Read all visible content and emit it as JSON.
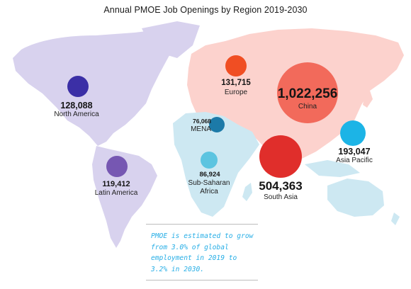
{
  "title": "Annual PMOE Job Openings by Region 2019-2030",
  "note": "PMOE is estimated to grow from 3.0% of global employment in 2019 to 3.2% in 2030.",
  "colors": {
    "north_america": "#3b2fa6",
    "latin_america": "#7657b2",
    "europe": "#f04e23",
    "china": "#f26a5b",
    "mena": "#1c7aa8",
    "sub_saharan_africa": "#5cc4e0",
    "south_asia": "#e02e2b",
    "asia_pacific": "#1cb4e6",
    "land_americas": "#d8d2ee",
    "land_eurasia": "#fcd2cd",
    "land_africa": "#cde8f2"
  },
  "regions": [
    {
      "key": "north_america",
      "name": "North America",
      "value": "128,088",
      "value_num": 128088
    },
    {
      "key": "latin_america",
      "name": "Latin America",
      "value": "119,412",
      "value_num": 119412
    },
    {
      "key": "europe",
      "name": "Europe",
      "value": "131,715",
      "value_num": 131715
    },
    {
      "key": "china",
      "name": "China",
      "value": "1,022,256",
      "value_num": 1022256
    },
    {
      "key": "mena",
      "name": "MENA",
      "value": "76,068",
      "value_num": 76068
    },
    {
      "key": "sub_saharan_africa",
      "name": "Sub-Saharan Africa",
      "value": "86,924",
      "value_num": 86924
    },
    {
      "key": "south_asia",
      "name": "South Asia",
      "value": "504,363",
      "value_num": 504363
    },
    {
      "key": "asia_pacific",
      "name": "Asia Pacific",
      "value": "193,047",
      "value_num": 193047
    }
  ]
}
